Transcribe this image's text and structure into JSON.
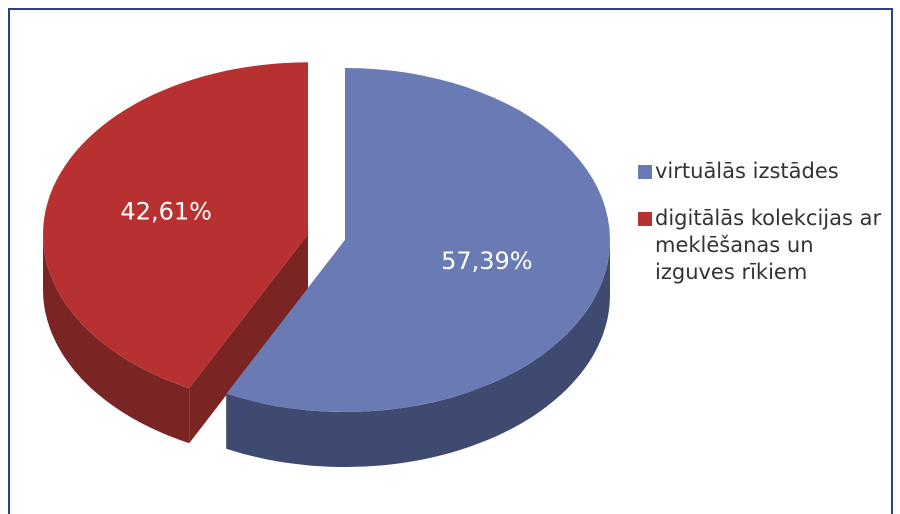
{
  "chart_data": {
    "type": "pie3d",
    "categories": [
      "virtuālās izstādes",
      "digitālās kolekcijas ar meklēšanas un izguves rīkiem"
    ],
    "values": [
      57.39,
      42.61
    ],
    "value_labels": [
      "57,39%",
      "42,61%"
    ],
    "colors": [
      "#6a7ab4",
      "#b83131"
    ],
    "side_colors": [
      "#3f4a70",
      "#7a2424"
    ]
  }
}
